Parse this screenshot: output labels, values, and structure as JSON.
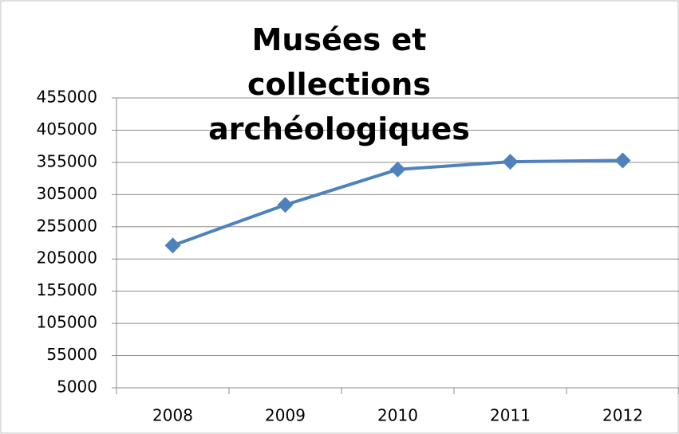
{
  "chart_data": {
    "type": "line",
    "title": "Musées et collections archéologiques",
    "categories": [
      "2008",
      "2009",
      "2010",
      "2011",
      "2012"
    ],
    "series": [
      {
        "name": "Musées et collections archéologiques",
        "color": "#4f81bd",
        "values": [
          226000,
          289000,
          344000,
          356000,
          358000
        ]
      }
    ],
    "ylim": [
      5000,
      455000
    ],
    "yticks": [
      5000,
      55000,
      105000,
      155000,
      205000,
      255000,
      305000,
      355000,
      405000,
      455000
    ],
    "grid": true
  }
}
